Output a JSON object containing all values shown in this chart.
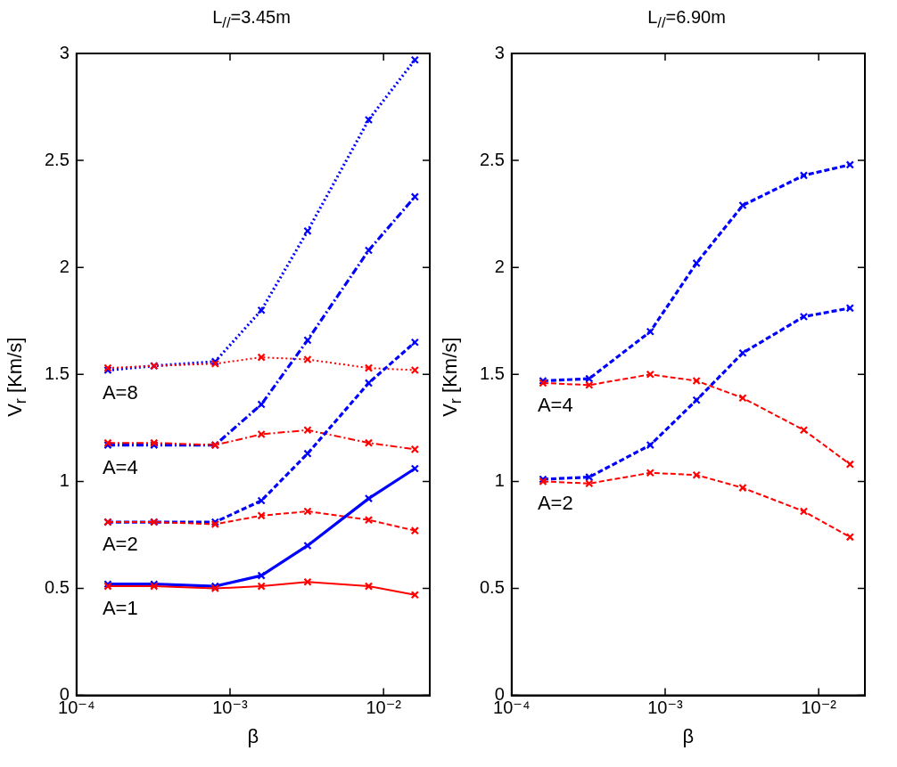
{
  "chart_data": [
    {
      "type": "line",
      "title": "L$_{//}$=3.45m",
      "xlabel": "β",
      "ylabel": "V$_{r}$ [Km/s]",
      "log": "x",
      "marker": "cross",
      "grid": false,
      "x": [
        0.00016,
        0.00032,
        0.0008,
        0.0016,
        0.0032,
        0.008,
        0.016
      ],
      "xlim": [
        0.0001,
        0.02
      ],
      "xticks": [
        {
          "value": 0.0001,
          "label": "10⁻⁴"
        },
        {
          "value": 0.001,
          "label": "10⁻³"
        },
        {
          "value": 0.01,
          "label": "10⁻²"
        }
      ],
      "ylim": [
        0,
        3
      ],
      "yticks": [
        0,
        0.5,
        1,
        1.5,
        2,
        2.5,
        3
      ],
      "series": [
        {
          "color": "#0000ff",
          "line_style": "dotted",
          "values": [
            1.52,
            1.54,
            1.56,
            1.8,
            2.17,
            2.69,
            2.97
          ]
        },
        {
          "color": "#ff0000",
          "line_style": "dotted",
          "values": [
            1.53,
            1.54,
            1.55,
            1.58,
            1.57,
            1.53,
            1.52
          ]
        },
        {
          "color": "#0000ff",
          "line_style": "dashdot",
          "values": [
            1.17,
            1.17,
            1.17,
            1.36,
            1.66,
            2.08,
            2.33
          ]
        },
        {
          "color": "#ff0000",
          "line_style": "dashdot",
          "values": [
            1.18,
            1.18,
            1.17,
            1.22,
            1.24,
            1.18,
            1.15
          ]
        },
        {
          "color": "#0000ff",
          "line_style": "dashed",
          "values": [
            0.81,
            0.81,
            0.81,
            0.91,
            1.13,
            1.46,
            1.65
          ]
        },
        {
          "color": "#ff0000",
          "line_style": "dashed",
          "values": [
            0.81,
            0.81,
            0.8,
            0.84,
            0.86,
            0.82,
            0.77
          ]
        },
        {
          "color": "#0000ff",
          "line_style": "solid",
          "values": [
            0.52,
            0.52,
            0.51,
            0.56,
            0.7,
            0.92,
            1.06
          ]
        },
        {
          "color": "#ff0000",
          "line_style": "solid",
          "values": [
            0.51,
            0.51,
            0.5,
            0.51,
            0.53,
            0.51,
            0.47
          ]
        }
      ],
      "annotations": [
        "A=8",
        "A=4",
        "A=2",
        "A=1"
      ]
    },
    {
      "type": "line",
      "title": "L$_{//}$=6.90m",
      "xlabel": "β",
      "ylabel": "V$_{r}$ [Km/s]",
      "log": "x",
      "marker": "cross",
      "grid": false,
      "x": [
        0.00016,
        0.00032,
        0.0008,
        0.0016,
        0.0032,
        0.008,
        0.016
      ],
      "xlim": [
        0.0001,
        0.02
      ],
      "xticks": [
        {
          "value": 0.0001,
          "label": "10⁻⁴"
        },
        {
          "value": 0.001,
          "label": "10⁻³"
        },
        {
          "value": 0.01,
          "label": "10⁻²"
        }
      ],
      "ylim": [
        0,
        3
      ],
      "yticks": [
        0,
        0.5,
        1,
        1.5,
        2,
        2.5,
        3
      ],
      "series": [
        {
          "color": "#0000ff",
          "line_style": "dashed",
          "values": [
            1.47,
            1.48,
            1.7,
            2.02,
            2.29,
            2.43,
            2.48
          ]
        },
        {
          "color": "#ff0000",
          "line_style": "dashed",
          "values": [
            1.46,
            1.45,
            1.5,
            1.47,
            1.39,
            1.24,
            1.08
          ]
        },
        {
          "color": "#0000ff",
          "line_style": "dashed",
          "values": [
            1.01,
            1.02,
            1.17,
            1.38,
            1.6,
            1.77,
            1.81
          ]
        },
        {
          "color": "#ff0000",
          "line_style": "dashed",
          "values": [
            1,
            0.99,
            1.04,
            1.03,
            0.97,
            0.86,
            0.74
          ]
        }
      ],
      "annotations": [
        "A=4",
        "A=2"
      ]
    }
  ]
}
